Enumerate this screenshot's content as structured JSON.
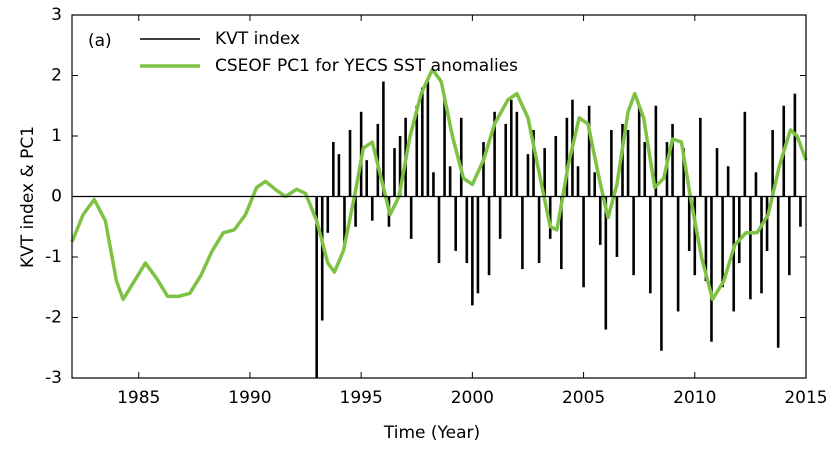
{
  "chart_data": {
    "type": "line",
    "annotation": "(a)",
    "x_label": "Time (Year)",
    "y_label": "KVT index & PC1",
    "xlim": [
      1982,
      2015
    ],
    "xticks": [
      1985,
      1990,
      1995,
      2000,
      2005,
      2010,
      2015
    ],
    "ylim": [
      -3,
      3
    ],
    "yticks": [
      -3,
      -2,
      -1,
      0,
      1,
      2,
      3
    ],
    "series": [
      {
        "name": "KVT index",
        "type": "bar",
        "color": "#000000",
        "x": [
          1993,
          1993.25,
          1993.5,
          1993.75,
          1994,
          1994.25,
          1994.5,
          1994.75,
          1995,
          1995.25,
          1995.5,
          1995.75,
          1996,
          1996.25,
          1996.5,
          1996.75,
          1997,
          1997.25,
          1997.5,
          1997.75,
          1998,
          1998.25,
          1998.5,
          1998.75,
          1999,
          1999.25,
          1999.5,
          1999.75,
          2000,
          2000.25,
          2000.5,
          2000.75,
          2001,
          2001.25,
          2001.5,
          2001.75,
          2002,
          2002.25,
          2002.5,
          2002.75,
          2003,
          2003.25,
          2003.5,
          2003.75,
          2004,
          2004.25,
          2004.5,
          2004.75,
          2005,
          2005.25,
          2005.5,
          2005.75,
          2006,
          2006.25,
          2006.5,
          2006.75,
          2007,
          2007.25,
          2007.5,
          2007.75,
          2008,
          2008.25,
          2008.5,
          2008.75,
          2009,
          2009.25,
          2009.5,
          2009.75,
          2010,
          2010.25,
          2010.5,
          2010.75,
          2011,
          2011.25,
          2011.5,
          2011.75,
          2012,
          2012.25,
          2012.5,
          2012.75,
          2013,
          2013.25,
          2013.5,
          2013.75,
          2014,
          2014.25,
          2014.5,
          2014.75
        ],
        "values": [
          -3.0,
          -2.05,
          -0.6,
          0.9,
          0.7,
          -0.8,
          1.1,
          -0.5,
          1.4,
          0.6,
          -0.4,
          1.2,
          1.9,
          -0.5,
          0.8,
          1.0,
          1.3,
          -0.7,
          1.5,
          1.8,
          1.9,
          0.4,
          -1.1,
          1.6,
          0.5,
          -0.9,
          1.3,
          -1.1,
          -1.8,
          -1.6,
          0.9,
          -1.3,
          1.4,
          -0.7,
          1.2,
          1.6,
          1.4,
          -1.2,
          0.7,
          1.1,
          -1.1,
          0.8,
          -0.7,
          1.0,
          -1.2,
          1.3,
          1.6,
          0.5,
          -1.5,
          1.5,
          0.4,
          -0.8,
          -2.2,
          1.1,
          -1.0,
          1.2,
          1.1,
          -1.3,
          1.5,
          0.9,
          -1.6,
          1.5,
          -2.55,
          0.9,
          1.2,
          -1.9,
          0.8,
          -0.9,
          -1.3,
          1.3,
          -1.4,
          -2.4,
          0.8,
          -1.5,
          0.5,
          -1.9,
          -1.1,
          1.4,
          -1.7,
          0.4,
          -1.6,
          -0.9,
          1.1,
          -2.5,
          1.5,
          -1.3,
          1.7,
          -0.5
        ]
      },
      {
        "name": "CSEOF PC1 for YECS SST anomalies",
        "type": "line",
        "color": "#7dc242",
        "x": [
          1982,
          1982.5,
          1983,
          1983.5,
          1984,
          1984.3,
          1984.8,
          1985.3,
          1985.8,
          1986.3,
          1986.8,
          1987.3,
          1987.8,
          1988.3,
          1988.8,
          1989.3,
          1989.8,
          1990.3,
          1990.7,
          1991.2,
          1991.6,
          1992.1,
          1992.5,
          1993,
          1993.5,
          1993.8,
          1994.2,
          1994.7,
          1995.1,
          1995.5,
          1995.9,
          1996.3,
          1996.7,
          1997.2,
          1997.7,
          1998.2,
          1998.6,
          1999.1,
          1999.6,
          2000,
          2000.5,
          2001,
          2001.6,
          2002,
          2002.5,
          2003,
          2003.5,
          2003.8,
          2004.3,
          2004.8,
          2005.2,
          2005.7,
          2006.1,
          2006.5,
          2007,
          2007.3,
          2007.7,
          2008.2,
          2008.6,
          2009,
          2009.4,
          2009.8,
          2010.3,
          2010.8,
          2011.3,
          2011.8,
          2012.3,
          2012.8,
          2013.3,
          2013.8,
          2014.3,
          2014.6,
          2015
        ],
        "values": [
          -0.75,
          -0.3,
          -0.05,
          -0.4,
          -1.4,
          -1.7,
          -1.4,
          -1.1,
          -1.35,
          -1.65,
          -1.65,
          -1.6,
          -1.3,
          -0.9,
          -0.6,
          -0.55,
          -0.3,
          0.15,
          0.25,
          0.1,
          0.0,
          0.12,
          0.05,
          -0.4,
          -1.1,
          -1.25,
          -0.9,
          0.0,
          0.8,
          0.9,
          0.3,
          -0.3,
          0.0,
          1.0,
          1.7,
          2.1,
          1.9,
          1.0,
          0.3,
          0.2,
          0.6,
          1.2,
          1.6,
          1.7,
          1.3,
          0.4,
          -0.5,
          -0.55,
          0.5,
          1.3,
          1.2,
          0.3,
          -0.35,
          0.2,
          1.4,
          1.7,
          1.3,
          0.15,
          0.3,
          0.95,
          0.9,
          0.0,
          -1.0,
          -1.7,
          -1.4,
          -0.8,
          -0.6,
          -0.6,
          -0.3,
          0.5,
          1.1,
          1.0,
          0.6
        ]
      }
    ]
  }
}
